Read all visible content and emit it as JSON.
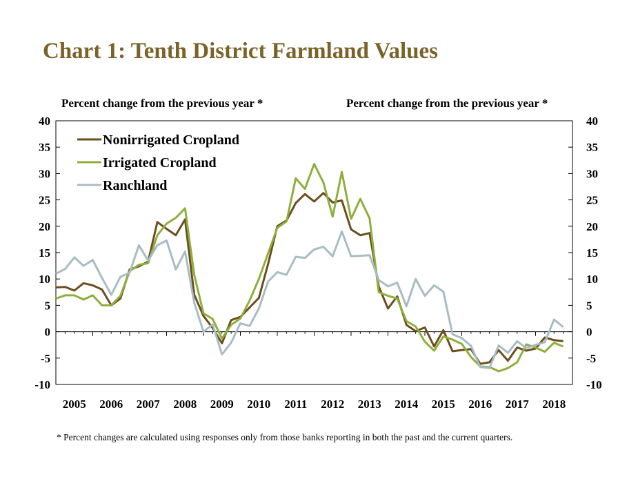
{
  "title": "Chart 1: Tenth District Farmland Values",
  "left_axis_label": "Percent change from the previous year *",
  "right_axis_label": "Percent change from the previous year *",
  "footnote": "* Percent changes are calculated using responses only from those banks reporting in both the past and the current quarters.",
  "chart_data": {
    "type": "line",
    "title": "Chart 1: Tenth District Farmland Values",
    "ylabel": "Percent change from the previous year *",
    "ylim": [
      -10,
      40
    ],
    "yticks": [
      -10,
      -5,
      0,
      5,
      10,
      15,
      20,
      25,
      30,
      35,
      40
    ],
    "x_range": [
      2005.0,
      2019.0
    ],
    "year_labels": [
      "2005",
      "2006",
      "2007",
      "2008",
      "2009",
      "2010",
      "2011",
      "2012",
      "2013",
      "2014",
      "2015",
      "2016",
      "2017",
      "2018"
    ],
    "legend_placement": "top-left",
    "grid": false,
    "x": [
      2005.0,
      2005.25,
      2005.5,
      2005.75,
      2006.0,
      2006.25,
      2006.5,
      2006.75,
      2007.0,
      2007.25,
      2007.5,
      2007.75,
      2008.0,
      2008.25,
      2008.5,
      2008.75,
      2009.0,
      2009.25,
      2009.5,
      2009.75,
      2010.0,
      2010.25,
      2010.5,
      2010.75,
      2011.0,
      2011.25,
      2011.5,
      2011.75,
      2012.0,
      2012.25,
      2012.5,
      2012.75,
      2013.0,
      2013.25,
      2013.5,
      2013.75,
      2014.0,
      2014.25,
      2014.5,
      2014.75,
      2015.0,
      2015.25,
      2015.5,
      2015.75,
      2016.0,
      2016.25,
      2016.5,
      2016.75,
      2017.0,
      2017.25,
      2017.5,
      2017.75,
      2018.0,
      2018.25,
      2018.5,
      2018.75
    ],
    "series": [
      {
        "name": "Nonirrigated Cropland",
        "color": "#6b4d1e",
        "values": [
          8.4,
          8.5,
          7.8,
          9.2,
          8.8,
          8.0,
          5.0,
          6.3,
          11.8,
          12.4,
          13.3,
          20.8,
          19.5,
          18.3,
          21.3,
          7.0,
          3.0,
          0.7,
          -2.2,
          2.2,
          2.8,
          4.6,
          6.4,
          12.8,
          20.0,
          21.1,
          24.4,
          26.1,
          24.7,
          26.3,
          24.5,
          24.9,
          19.4,
          18.3,
          18.7,
          8.6,
          4.4,
          6.7,
          1.3,
          0.1,
          0.8,
          -2.8,
          0.3,
          -3.7,
          -3.5,
          -3.3,
          -6.1,
          -5.8,
          -3.5,
          -5.5,
          -3.0,
          -3.6,
          -3.2,
          -1.1,
          -1.6,
          -1.8
        ]
      },
      {
        "name": "Irrigated Cropland",
        "color": "#8fae3c",
        "values": [
          6.3,
          6.9,
          6.9,
          6.1,
          6.9,
          5.0,
          5.0,
          6.8,
          11.5,
          12.7,
          13.0,
          18.3,
          20.5,
          21.6,
          23.4,
          10.8,
          3.5,
          2.4,
          -1.3,
          1.3,
          2.5,
          5.9,
          10.0,
          14.8,
          19.7,
          20.9,
          29.1,
          27.1,
          31.8,
          28.3,
          21.8,
          30.3,
          21.4,
          25.2,
          21.5,
          7.5,
          6.8,
          6.3,
          2.0,
          1.0,
          -1.9,
          -3.6,
          -0.9,
          -1.5,
          -2.3,
          -4.8,
          -6.6,
          -6.7,
          -7.5,
          -6.9,
          -5.8,
          -2.4,
          -3.0,
          -3.8,
          -2.1,
          -2.8
        ]
      },
      {
        "name": "Ranchland",
        "color": "#a8bcc4",
        "values": [
          11.0,
          11.9,
          14.1,
          12.5,
          13.6,
          10.2,
          7.0,
          10.4,
          11.2,
          16.4,
          13.5,
          16.4,
          17.3,
          11.8,
          15.2,
          5.5,
          0.0,
          1.4,
          -4.3,
          -2.1,
          1.6,
          1.1,
          4.4,
          9.5,
          11.3,
          10.8,
          14.2,
          14.0,
          15.6,
          16.1,
          14.3,
          19.0,
          14.3,
          14.4,
          14.5,
          9.8,
          8.6,
          9.3,
          4.8,
          10.0,
          6.8,
          8.8,
          7.6,
          -0.5,
          -1.2,
          -2.7,
          -6.7,
          -6.9,
          -2.6,
          -4.0,
          -1.8,
          -3.1,
          -2.5,
          -2.0,
          2.3,
          0.9
        ]
      }
    ]
  }
}
